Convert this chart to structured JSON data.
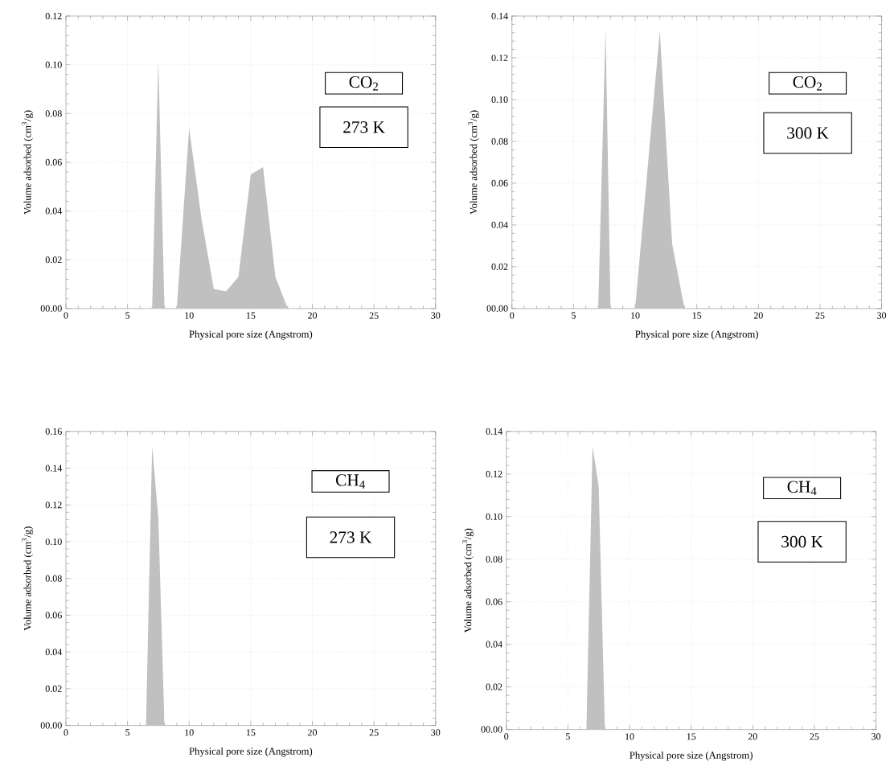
{
  "chart_data": [
    {
      "type": "area",
      "color": "#c0c0c0",
      "grid": true,
      "xlabel": "Physical pore size (Angstrom)",
      "ylabel": "Volume adsorbed (cm$^{3}$/g)",
      "annotations": [
        "CO$_{2}$",
        "273 K"
      ],
      "x": [
        7,
        7.5,
        8,
        9,
        10,
        11,
        12,
        13,
        14,
        15,
        16,
        17,
        18,
        19
      ],
      "values": [
        0,
        0.102,
        0,
        0,
        0.074,
        0.037,
        0.008,
        0.007,
        0.013,
        0.055,
        0.058,
        0.013,
        0,
        0
      ],
      "xlim": [
        0,
        30
      ],
      "xticks": [
        0,
        5,
        10,
        15,
        20,
        25,
        30
      ],
      "ylim": [
        0,
        0.12
      ],
      "yticks": [
        {
          "value": 0,
          "label": "00.00"
        },
        {
          "value": 0.02,
          "label": "0.02"
        },
        {
          "value": 0.04,
          "label": "0.04"
        },
        {
          "value": 0.06,
          "label": "0.06"
        },
        {
          "value": 0.08,
          "label": "0.08"
        },
        {
          "value": 0.1,
          "label": "0.10"
        },
        {
          "value": 0.12,
          "label": "0.12"
        }
      ]
    },
    {
      "type": "area",
      "color": "#c0c0c0",
      "grid": true,
      "xlabel": "Physical pore size (Angstrom)",
      "ylabel": "Volume adsorbed (cm$^{3}$/g)",
      "annotations": [
        "CO$_{2}$",
        "300 K"
      ],
      "x": [
        7,
        7.6,
        8,
        10,
        12,
        13,
        14
      ],
      "values": [
        0,
        0.134,
        0,
        0,
        0.133,
        0.031,
        0
      ],
      "xlim": [
        0,
        30
      ],
      "xticks": [
        0,
        5,
        10,
        15,
        20,
        25,
        30
      ],
      "ylim": [
        0,
        0.14
      ],
      "yticks": [
        {
          "value": 0,
          "label": "00.00"
        },
        {
          "value": 0.02,
          "label": "0.02"
        },
        {
          "value": 0.04,
          "label": "0.04"
        },
        {
          "value": 0.06,
          "label": "0.06"
        },
        {
          "value": 0.08,
          "label": "0.08"
        },
        {
          "value": 0.1,
          "label": "0.10"
        },
        {
          "value": 0.12,
          "label": "0.12"
        },
        {
          "value": 0.14,
          "label": "0.14"
        }
      ]
    },
    {
      "type": "area",
      "color": "#c0c0c0",
      "grid": true,
      "xlabel": "Physical pore size (Angstrom)",
      "ylabel": "Volume adsorbed (cm$^{3}$/g)",
      "annotations": [
        "CH$_{4}$",
        "273 K"
      ],
      "x": [
        6.5,
        7,
        7.5,
        8
      ],
      "values": [
        0,
        0.152,
        0.113,
        0
      ],
      "xlim": [
        0,
        30
      ],
      "xticks": [
        0,
        5,
        10,
        15,
        20,
        25,
        30
      ],
      "ylim": [
        0,
        0.16
      ],
      "yticks": [
        {
          "value": 0,
          "label": "00.00"
        },
        {
          "value": 0.02,
          "label": "0.02"
        },
        {
          "value": 0.04,
          "label": "0.04"
        },
        {
          "value": 0.06,
          "label": "0.06"
        },
        {
          "value": 0.08,
          "label": "0.08"
        },
        {
          "value": 0.1,
          "label": "0.10"
        },
        {
          "value": 0.12,
          "label": "0.12"
        },
        {
          "value": 0.14,
          "label": "0.14"
        },
        {
          "value": 0.16,
          "label": "0.16"
        }
      ]
    },
    {
      "type": "area",
      "color": "#c0c0c0",
      "grid": true,
      "xlabel": "Physical pore size (Angstrom)",
      "ylabel": "Volume adsorbed (cm$^{3}$/g)",
      "annotations": [
        "CH$_{4}$",
        "300 K"
      ],
      "x": [
        6.5,
        7,
        7.5,
        8
      ],
      "values": [
        0,
        0.133,
        0.114,
        0
      ],
      "xlim": [
        0,
        30
      ],
      "xticks": [
        0,
        5,
        10,
        15,
        20,
        25,
        30
      ],
      "ylim": [
        0,
        0.14
      ],
      "yticks": [
        {
          "value": 0,
          "label": "00.00"
        },
        {
          "value": 0.02,
          "label": "0.02"
        },
        {
          "value": 0.04,
          "label": "0.04"
        },
        {
          "value": 0.06,
          "label": "0.06"
        },
        {
          "value": 0.08,
          "label": "0.08"
        },
        {
          "value": 0.1,
          "label": "0.10"
        },
        {
          "value": 0.12,
          "label": "0.12"
        },
        {
          "value": 0.14,
          "label": "0.14"
        }
      ]
    }
  ]
}
